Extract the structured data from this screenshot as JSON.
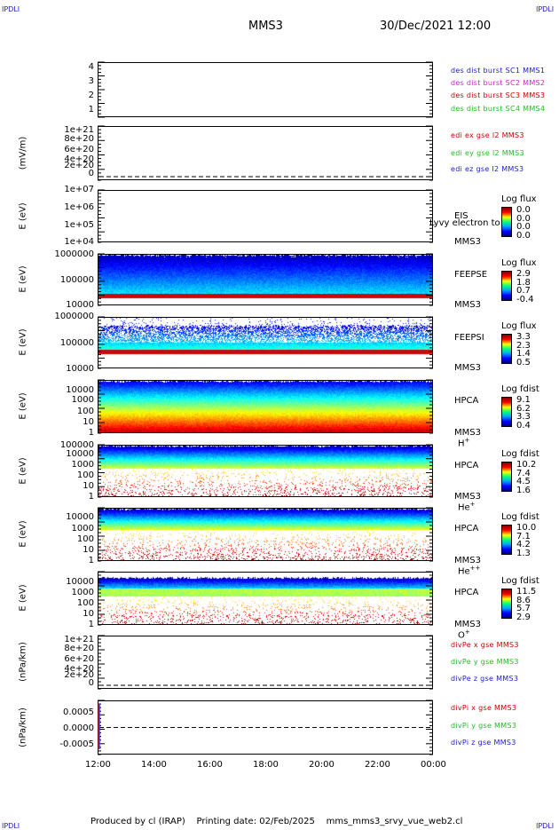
{
  "corners": {
    "label": "IPDLI"
  },
  "header": {
    "spacecraft": "MMS3",
    "datetime": "30/Dec/2021 12:00"
  },
  "footer": {
    "text": "Produced by cl (IRAP)    Printing date: 02/Feb/2025    mms_mms3_srvy_vue_web2.cl"
  },
  "xaxis": {
    "ticks": [
      "12:00",
      "14:00",
      "16:00",
      "18:00",
      "20:00",
      "22:00",
      "00:00"
    ]
  },
  "colors": {
    "blue": "#1a1acc",
    "magenta": "#cc22cc",
    "red": "#cc0000",
    "green": "#22bb22"
  },
  "chart_data": [
    {
      "type": "line",
      "id": "des-dist",
      "ylabel": "",
      "yticks": [
        "4",
        "3",
        "2",
        "1"
      ],
      "ylim": [
        0.5,
        4.5
      ],
      "legend": [
        "des dist burst SC1 MMS1",
        "des dist burst SC2 MMS2",
        "des dist burst SC3 MMS3",
        "des dist burst SC4 MMS4"
      ]
    },
    {
      "type": "line",
      "id": "edi",
      "ylabel": "(mV/m)",
      "yticks": [
        "1e+21",
        "8e+20",
        "6e+20",
        "4e+20",
        "2e+20",
        "0"
      ],
      "ylim": [
        0,
        1e+21
      ],
      "zero_line": true,
      "legend": [
        "edi ex gse l2 MMS3",
        "edi ey gse l2 MMS3",
        "edi ez gse l2 MMS3"
      ]
    },
    {
      "type": "heatmap",
      "id": "eis",
      "ylabel": "E (eV)",
      "yticks": [
        "1e+07",
        "1e+06",
        "1e+05",
        "1e+04"
      ],
      "ylim": [
        10000,
        10000000
      ],
      "instrument": [
        "EIS",
        "MMS3"
      ],
      "overlay_text": "Lyvy electron to",
      "cbar_title": "Log flux",
      "cbar_values": [
        "0.0",
        "0.0",
        "0.0",
        "0.0"
      ]
    },
    {
      "type": "heatmap",
      "id": "feepse",
      "ylabel": "E (eV)",
      "yticks": [
        "1000000",
        "100000",
        "10000"
      ],
      "ylim": [
        10000,
        1000000
      ],
      "instrument": [
        "FEEPSE",
        "MMS3"
      ],
      "cbar_title": "Log flux",
      "cbar_values": [
        "2.9",
        "1.8",
        "0.7",
        "-0.4"
      ]
    },
    {
      "type": "heatmap",
      "id": "feepsi",
      "ylabel": "E (eV)",
      "yticks": [
        "1000000",
        "100000",
        "10000"
      ],
      "ylim": [
        10000,
        1000000
      ],
      "instrument": [
        "FEEPSI",
        "MMS3"
      ],
      "cbar_title": "Log flux",
      "cbar_values": [
        "3.3",
        "2.3",
        "1.4",
        "0.5"
      ]
    },
    {
      "type": "heatmap",
      "id": "hpca-h",
      "ylabel": "E (eV)",
      "yticks": [
        "10000",
        "1000",
        "100",
        "10",
        "1"
      ],
      "ylim": [
        1,
        40000
      ],
      "instrument": [
        "HPCA",
        "MMS3",
        "H+"
      ],
      "cbar_title": "Log fdist",
      "cbar_values": [
        "9.1",
        "6.2",
        "3.3",
        "0.4"
      ]
    },
    {
      "type": "heatmap",
      "id": "hpca-he",
      "ylabel": "E (eV)",
      "yticks": [
        "100000",
        "10000",
        "1000",
        "100",
        "10",
        "1"
      ],
      "ylim": [
        1,
        100000
      ],
      "instrument": [
        "HPCA",
        "MMS3",
        "He+"
      ],
      "cbar_title": "Log fdist",
      "cbar_values": [
        "10.2",
        "7.4",
        "4.5",
        "1.6"
      ]
    },
    {
      "type": "heatmap",
      "id": "hpca-hepp",
      "ylabel": "E (eV)",
      "yticks": [
        "10000",
        "1000",
        "100",
        "10",
        "1"
      ],
      "ylim": [
        1,
        40000
      ],
      "instrument": [
        "HPCA",
        "MMS3",
        "He++"
      ],
      "cbar_title": "Log fdist",
      "cbar_values": [
        "10.0",
        "7.1",
        "4.2",
        "1.3"
      ]
    },
    {
      "type": "heatmap",
      "id": "hpca-o",
      "ylabel": "E (eV)",
      "yticks": [
        "10000",
        "1000",
        "100",
        "10",
        "1"
      ],
      "ylim": [
        1,
        40000
      ],
      "instrument": [
        "HPCA",
        "MMS3",
        "O+"
      ],
      "cbar_title": "Log fdist",
      "cbar_values": [
        "11.5",
        "8.6",
        "5.7",
        "2.9"
      ]
    },
    {
      "type": "line",
      "id": "divpe",
      "ylabel": "(nPa/km)",
      "yticks": [
        "1e+21",
        "8e+20",
        "6e+20",
        "4e+20",
        "2e+20",
        "0"
      ],
      "ylim": [
        0,
        1e+21
      ],
      "zero_line": true,
      "legend": [
        "divPe x gse MMS3",
        "divPe y gse MMS3",
        "divPe z gse MMS3"
      ]
    },
    {
      "type": "line",
      "id": "divpi",
      "ylabel": "(nPa/km)",
      "yticks": [
        "0.0005",
        "0.0000",
        "-0.0005"
      ],
      "ylim": [
        -0.00085,
        0.00085
      ],
      "zero_line": true,
      "legend": [
        "divPi x gse MMS3",
        "divPi y gse MMS3",
        "divPi z gse MMS3"
      ]
    }
  ]
}
